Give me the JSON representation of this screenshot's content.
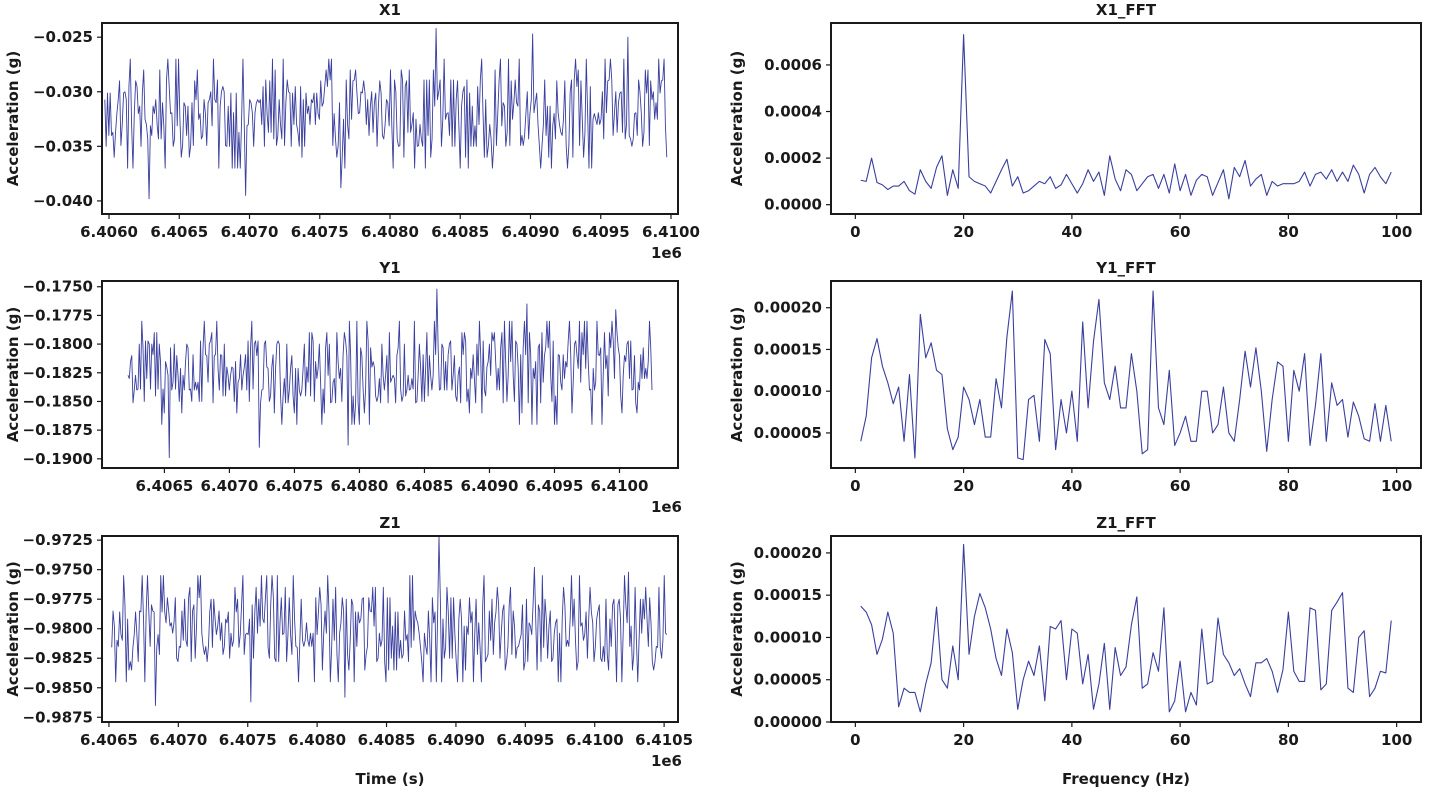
{
  "chart_data": [
    {
      "id": "x1",
      "type": "line",
      "title": "X1",
      "xlabel": "",
      "ylabel": "Acceleration (g)",
      "x_offset": "1e6",
      "xlim": [
        6.40595,
        6.41005
      ],
      "ylim": [
        -0.0412,
        -0.0237
      ],
      "xticks": [
        6.406,
        6.4065,
        6.407,
        6.4075,
        6.408,
        6.4085,
        6.409,
        6.4095,
        6.41
      ],
      "xtick_labels": [
        "6.4060",
        "6.4065",
        "6.4070",
        "6.4075",
        "6.4080",
        "6.4085",
        "6.4090",
        "6.4095",
        "6.4100"
      ],
      "yticks": [
        -0.04,
        -0.035,
        -0.03,
        -0.025
      ],
      "ytick_labels": [
        "−0.040",
        "−0.035",
        "−0.030",
        "−0.025"
      ],
      "series": [
        {
          "x_range": [
            6.40597,
            6.40997
          ],
          "points": 420,
          "center": -0.0318,
          "levels": [
            -0.037,
            -0.036,
            -0.035,
            -0.034,
            -0.033,
            -0.032,
            -0.031,
            -0.03,
            -0.029,
            -0.028,
            -0.027
          ],
          "extremes": [
            -0.0398,
            -0.0395,
            -0.0388,
            -0.0242,
            -0.0247,
            -0.025
          ]
        }
      ],
      "grid": false
    },
    {
      "id": "x1fft",
      "type": "line",
      "title": "X1_FFT",
      "xlabel": "",
      "ylabel": "Acceleration (g)",
      "xlim": [
        -4.5,
        104.5
      ],
      "ylim": [
        -4e-05,
        0.00078
      ],
      "xticks": [
        0,
        20,
        40,
        60,
        80,
        100
      ],
      "xtick_labels": [
        "0",
        "20",
        "40",
        "60",
        "80",
        "100"
      ],
      "yticks": [
        0,
        0.0002,
        0.0004,
        0.0006
      ],
      "ytick_labels": [
        "0.0000",
        "0.0002",
        "0.0004",
        "0.0006"
      ],
      "series": [
        {
          "x": [
            1,
            2,
            3,
            4,
            5,
            6,
            7,
            8,
            9,
            10,
            11,
            12,
            13,
            14,
            15,
            16,
            17,
            18,
            19,
            20,
            21,
            22,
            23,
            24,
            25,
            26,
            27,
            28,
            29,
            30,
            31,
            32,
            33,
            34,
            35,
            36,
            37,
            38,
            39,
            40,
            41,
            42,
            43,
            44,
            45,
            46,
            47,
            48,
            49,
            50,
            51,
            52,
            53,
            54,
            55,
            56,
            57,
            58,
            59,
            60,
            61,
            62,
            63,
            64,
            65,
            66,
            67,
            68,
            69,
            70,
            71,
            72,
            73,
            74,
            75,
            76,
            77,
            78,
            79,
            80,
            81,
            82,
            83,
            84,
            85,
            86,
            87,
            88,
            89,
            90,
            91,
            92,
            93,
            94,
            95,
            96,
            97,
            98,
            99
          ],
          "y": [
            0.000105,
            0.0001,
            0.0002,
            9.5e-05,
            8.5e-05,
            6.5e-05,
            8e-05,
            8e-05,
            0.0001,
            6e-05,
            4.5e-05,
            0.00015,
            0.0001,
            7e-05,
            0.00016,
            0.00021,
            4e-05,
            0.00015,
            7e-05,
            0.00073,
            0.00012,
            0.0001,
            9e-05,
            8e-05,
            5e-05,
            0.0001,
            0.00015,
            0.000195,
            8e-05,
            0.00012,
            5e-05,
            6e-05,
            8e-05,
            0.0001,
            9e-05,
            0.00012,
            7e-05,
            8.5e-05,
            0.00013,
            9e-05,
            5e-05,
            9e-05,
            0.00015,
            0.0001,
            0.00014,
            4e-05,
            0.00021,
            0.00011,
            6e-05,
            0.00015,
            0.00013,
            6e-05,
            9e-05,
            0.00012,
            0.00013,
            7e-05,
            0.00013,
            5e-05,
            0.000175,
            6e-05,
            0.00013,
            4e-05,
            0.000105,
            0.00013,
            0.00012,
            4e-05,
            9.5e-05,
            0.00015,
            2.5e-05,
            0.00016,
            0.00012,
            0.00019,
            8e-05,
            0.00011,
            0.00013,
            4e-05,
            0.0001,
            8e-05,
            9e-05,
            9e-05,
            9e-05,
            0.0001,
            0.00014,
            8e-05,
            0.00013,
            0.00014,
            0.00011,
            0.00015,
            0.0001,
            0.00014,
            0.0001,
            0.00017,
            0.00013,
            5e-05,
            0.00013,
            0.00016,
            0.00012,
            9e-05,
            0.00014
          ]
        }
      ],
      "grid": false
    },
    {
      "id": "y1",
      "type": "line",
      "title": "Y1",
      "xlabel": "",
      "ylabel": "Acceleration (g)",
      "x_offset": "1e6",
      "xlim": [
        6.40602,
        6.41045
      ],
      "ylim": [
        -0.1908,
        -0.1745
      ],
      "xticks": [
        6.4065,
        6.407,
        6.4075,
        6.408,
        6.4085,
        6.409,
        6.4095,
        6.41
      ],
      "xtick_labels": [
        "6.4065",
        "6.4070",
        "6.4075",
        "6.4080",
        "6.4085",
        "6.4090",
        "6.4095",
        "6.4100"
      ],
      "yticks": [
        -0.19,
        -0.1875,
        -0.185,
        -0.1825,
        -0.18,
        -0.1775,
        -0.175
      ],
      "ytick_labels": [
        "−0.1900",
        "−0.1875",
        "−0.1850",
        "−0.1825",
        "−0.1800",
        "−0.1775",
        "−0.1750"
      ],
      "series": [
        {
          "x_range": [
            6.40622,
            6.41025
          ],
          "points": 420,
          "center": -0.1823,
          "levels": [
            -0.187,
            -0.186,
            -0.185,
            -0.184,
            -0.183,
            -0.182,
            -0.181,
            -0.18,
            -0.179,
            -0.178
          ],
          "extremes": [
            -0.1899,
            -0.189,
            -0.1888,
            -0.1752,
            -0.1765,
            -0.177
          ]
        }
      ],
      "grid": false
    },
    {
      "id": "y1fft",
      "type": "line",
      "title": "Y1_FFT",
      "xlabel": "",
      "ylabel": "Acceleration (g)",
      "xlim": [
        -4.5,
        104.5
      ],
      "ylim": [
        8e-06,
        0.000232
      ],
      "xticks": [
        0,
        20,
        40,
        60,
        80,
        100
      ],
      "xtick_labels": [
        "0",
        "20",
        "40",
        "60",
        "80",
        "100"
      ],
      "yticks": [
        5e-05,
        0.0001,
        0.00015,
        0.0002
      ],
      "ytick_labels": [
        "0.00005",
        "0.00010",
        "0.00015",
        "0.00020"
      ],
      "series": [
        {
          "x": [
            1,
            2,
            3,
            4,
            5,
            6,
            7,
            8,
            9,
            10,
            11,
            12,
            13,
            14,
            15,
            16,
            17,
            18,
            19,
            20,
            21,
            22,
            23,
            24,
            25,
            26,
            27,
            28,
            29,
            30,
            31,
            32,
            33,
            34,
            35,
            36,
            37,
            38,
            39,
            40,
            41,
            42,
            43,
            44,
            45,
            46,
            47,
            48,
            49,
            50,
            51,
            52,
            53,
            54,
            55,
            56,
            57,
            58,
            59,
            60,
            61,
            62,
            63,
            64,
            65,
            66,
            67,
            68,
            69,
            70,
            71,
            72,
            73,
            74,
            75,
            76,
            77,
            78,
            79,
            80,
            81,
            82,
            83,
            84,
            85,
            86,
            87,
            88,
            89,
            90,
            91,
            92,
            93,
            94,
            95,
            96,
            97,
            98,
            99
          ],
          "y": [
            4e-05,
            7e-05,
            0.00014,
            0.000163,
            0.00013,
            0.00011,
            8.5e-05,
            0.000105,
            4e-05,
            0.00012,
            2e-05,
            0.000192,
            0.00014,
            0.000158,
            0.000125,
            0.00012,
            5.5e-05,
            3e-05,
            4.5e-05,
            0.000105,
            9e-05,
            6e-05,
            9e-05,
            4.5e-05,
            4.5e-05,
            0.000115,
            8e-05,
            0.000165,
            0.00022,
            2e-05,
            1.8e-05,
            9e-05,
            9.5e-05,
            4e-05,
            0.000162,
            0.000145,
            3e-05,
            9e-05,
            5e-05,
            0.0001,
            4e-05,
            0.000183,
            8e-05,
            0.00016,
            0.00021,
            0.00011,
            9e-05,
            0.00013,
            8e-05,
            8e-05,
            0.000145,
            0.0001,
            2.5e-05,
            3e-05,
            0.00022,
            8e-05,
            6e-05,
            0.000125,
            3.5e-05,
            5e-05,
            7e-05,
            4e-05,
            4e-05,
            0.0001,
            0.0001,
            5e-05,
            6e-05,
            0.000105,
            5e-05,
            4e-05,
            9e-05,
            0.000148,
            0.000105,
            0.000152,
            0.0001,
            2.8e-05,
            9e-05,
            0.000135,
            0.00013,
            4e-05,
            0.000125,
            0.0001,
            0.000145,
            3.5e-05,
            8.3e-05,
            0.000145,
            4e-05,
            0.00011,
            8.3e-05,
            9e-05,
            4.5e-05,
            8.7e-05,
            7e-05,
            4.3e-05,
            4e-05,
            8.5e-05,
            4e-05,
            8.3e-05,
            4e-05
          ]
        }
      ],
      "grid": false
    },
    {
      "id": "z1",
      "type": "line",
      "title": "Z1",
      "xlabel": "Time (s)",
      "ylabel": "Acceleration (g)",
      "x_offset": "1e6",
      "xlim": [
        6.40645,
        6.4106
      ],
      "ylim": [
        -0.9879,
        -0.97215
      ],
      "xticks": [
        6.4065,
        6.407,
        6.4075,
        6.408,
        6.4085,
        6.409,
        6.4095,
        6.41,
        6.4105
      ],
      "xtick_labels": [
        "6.4065",
        "6.4070",
        "6.4075",
        "6.4080",
        "6.4085",
        "6.4090",
        "6.4095",
        "6.4100",
        "6.4105"
      ],
      "yticks": [
        -0.9875,
        -0.985,
        -0.9825,
        -0.98,
        -0.9775,
        -0.975,
        -0.9725
      ],
      "ytick_labels": [
        "−0.9875",
        "−0.9850",
        "−0.9825",
        "−0.9800",
        "−0.9775",
        "−0.9750",
        "−0.9725"
      ],
      "series": [
        {
          "x_range": [
            6.40652,
            6.41052
          ],
          "points": 420,
          "center": -0.9802,
          "levels": [
            -0.9845,
            -0.9835,
            -0.9825,
            -0.9815,
            -0.9805,
            -0.9795,
            -0.9785,
            -0.9775,
            -0.9765,
            -0.9755
          ],
          "extremes": [
            -0.9865,
            -0.9862,
            -0.9858,
            -0.9722,
            -0.9748,
            -0.9752
          ]
        }
      ],
      "grid": false
    },
    {
      "id": "z1fft",
      "type": "line",
      "title": "Z1_FFT",
      "xlabel": "Frequency (Hz)",
      "ylabel": "Acceleration (g)",
      "xlim": [
        -4.5,
        104.5
      ],
      "ylim": [
        0,
        0.00022
      ],
      "xticks": [
        0,
        20,
        40,
        60,
        80,
        100
      ],
      "xtick_labels": [
        "0",
        "20",
        "40",
        "60",
        "80",
        "100"
      ],
      "yticks": [
        0,
        5e-05,
        0.0001,
        0.00015,
        0.0002
      ],
      "ytick_labels": [
        "0.00000",
        "0.00005",
        "0.00010",
        "0.00015",
        "0.00020"
      ],
      "series": [
        {
          "x": [
            1,
            2,
            3,
            4,
            5,
            6,
            7,
            8,
            9,
            10,
            11,
            12,
            13,
            14,
            15,
            16,
            17,
            18,
            19,
            20,
            21,
            22,
            23,
            24,
            25,
            26,
            27,
            28,
            29,
            30,
            31,
            32,
            33,
            34,
            35,
            36,
            37,
            38,
            39,
            40,
            41,
            42,
            43,
            44,
            45,
            46,
            47,
            48,
            49,
            50,
            51,
            52,
            53,
            54,
            55,
            56,
            57,
            58,
            59,
            60,
            61,
            62,
            63,
            64,
            65,
            66,
            67,
            68,
            69,
            70,
            71,
            72,
            73,
            74,
            75,
            76,
            77,
            78,
            79,
            80,
            81,
            82,
            83,
            84,
            85,
            86,
            87,
            88,
            89,
            90,
            91,
            92,
            93,
            94,
            95,
            96,
            97,
            98,
            99
          ],
          "y": [
            0.000137,
            0.00013,
            0.000115,
            8e-05,
            9.8e-05,
            0.00013,
            0.000105,
            1.8e-05,
            4e-05,
            3.5e-05,
            3.5e-05,
            1.2e-05,
            4.5e-05,
            7e-05,
            0.000136,
            5e-05,
            4e-05,
            9e-05,
            5e-05,
            0.00021,
            8e-05,
            0.000125,
            0.000152,
            0.000135,
            0.00011,
            7.5e-05,
            5.5e-05,
            0.00011,
            8.2e-05,
            1.5e-05,
            5e-05,
            7.2e-05,
            5.5e-05,
            9e-05,
            2.5e-05,
            0.000113,
            0.00011,
            0.00012,
            5e-05,
            0.00011,
            0.000105,
            4.5e-05,
            8e-05,
            1.5e-05,
            4.5e-05,
            9.3e-05,
            1.5e-05,
            8.8e-05,
            5.5e-05,
            6.5e-05,
            0.000115,
            0.000148,
            4e-05,
            4.5e-05,
            8.2e-05,
            6e-05,
            0.000135,
            1.2e-05,
            2.5e-05,
            7.2e-05,
            1.2e-05,
            3.5e-05,
            2e-05,
            0.00011,
            4.5e-05,
            4.8e-05,
            0.000123,
            8e-05,
            7e-05,
            5.5e-05,
            6.3e-05,
            4.5e-05,
            3e-05,
            7e-05,
            7e-05,
            7.5e-05,
            6e-05,
            3.5e-05,
            6.2e-05,
            0.00013,
            6e-05,
            4.8e-05,
            4.8e-05,
            0.000135,
            0.000132,
            3.8e-05,
            4.5e-05,
            0.000132,
            0.000142,
            0.000153,
            4e-05,
            3.5e-05,
            0.0001,
            0.000108,
            3e-05,
            4e-05,
            6e-05,
            5.8e-05,
            0.00012
          ]
        }
      ],
      "grid": false
    }
  ]
}
